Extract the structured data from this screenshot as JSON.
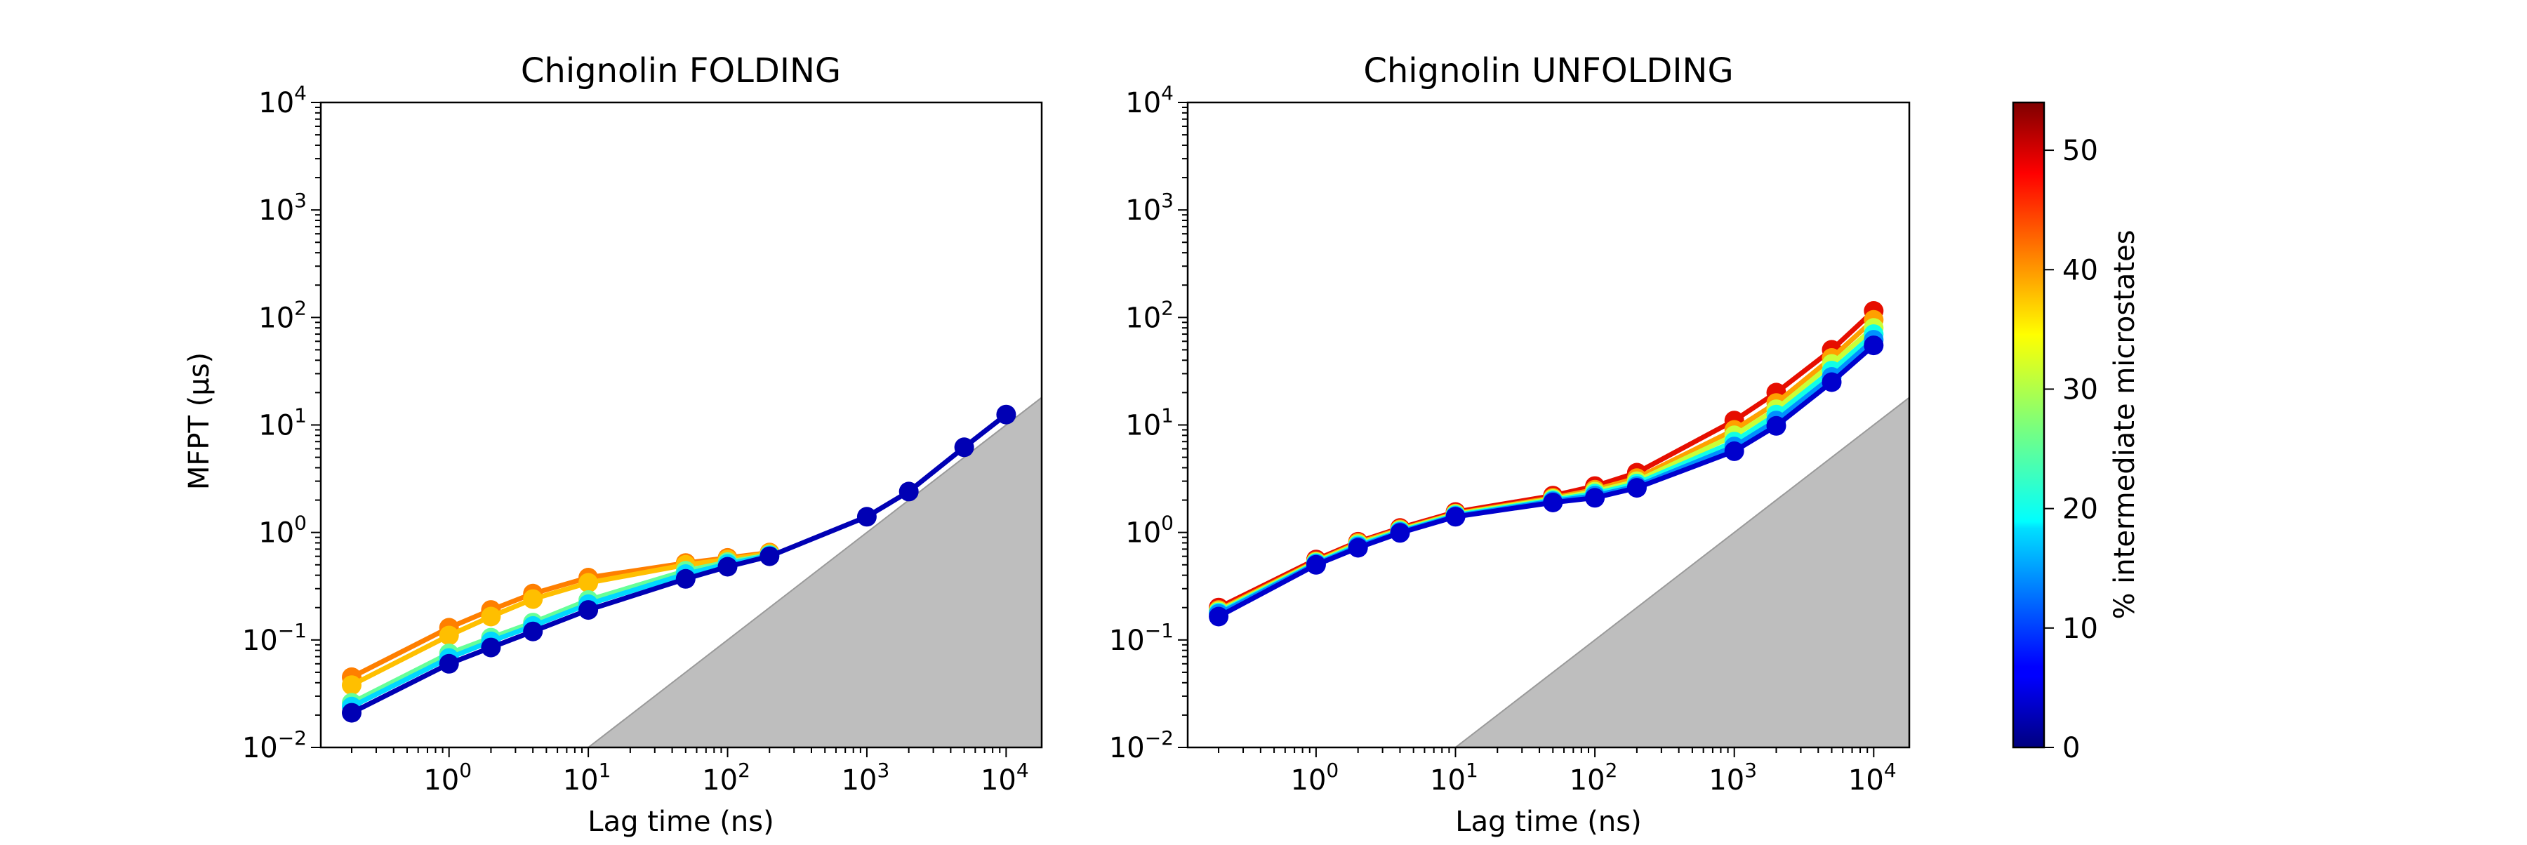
{
  "chart_data": [
    {
      "type": "line",
      "title": "Chignolin FOLDING",
      "xlabel": "Lag time (ns)",
      "ylabel": "MFPT (μs)",
      "xscale": "log",
      "yscale": "log",
      "xlim": [
        0.12,
        18000
      ],
      "ylim": [
        0.01,
        10000
      ],
      "xticks": [
        1,
        10,
        100,
        1000,
        10000
      ],
      "xtick_labels": [
        [
          "10",
          "0"
        ],
        [
          "10",
          "1"
        ],
        [
          "10",
          "2"
        ],
        [
          "10",
          "3"
        ],
        [
          "10",
          "4"
        ]
      ],
      "yticks": [
        0.01,
        0.1,
        1,
        10,
        100,
        1000,
        10000
      ],
      "ytick_labels": [
        [
          "10",
          "−2"
        ],
        [
          "10",
          "−1"
        ],
        [
          "10",
          "0"
        ],
        [
          "10",
          "1"
        ],
        [
          "10",
          "2"
        ],
        [
          "10",
          "3"
        ],
        [
          "10",
          "4"
        ]
      ],
      "shaded_region": {
        "description": "MFPT below lag time",
        "x_start": 10,
        "color": "#bebebe"
      },
      "series": [
        {
          "pct": 45,
          "color": "#ff7f00",
          "x": [
            0.2,
            1,
            2,
            4,
            10,
            50,
            100,
            200
          ],
          "y": [
            0.045,
            0.13,
            0.19,
            0.27,
            0.38,
            0.52,
            0.58,
            0.65
          ]
        },
        {
          "pct": 38,
          "color": "#ffbf00",
          "x": [
            0.2,
            1,
            2,
            4,
            10,
            50,
            100,
            200
          ],
          "y": [
            0.038,
            0.11,
            0.165,
            0.24,
            0.34,
            0.5,
            0.56,
            0.64
          ]
        },
        {
          "pct": 25,
          "color": "#66ff99",
          "x": [
            0.2,
            1,
            2,
            4,
            10,
            50,
            100,
            200
          ],
          "y": [
            0.026,
            0.075,
            0.105,
            0.145,
            0.235,
            0.44,
            0.53,
            0.62
          ]
        },
        {
          "pct": 18,
          "color": "#00d8ff",
          "x": [
            0.2,
            1,
            2,
            4,
            10,
            50,
            100,
            200
          ],
          "y": [
            0.024,
            0.068,
            0.097,
            0.135,
            0.215,
            0.41,
            0.51,
            0.61
          ]
        },
        {
          "pct": 2,
          "color": "#0000b4",
          "x": [
            0.2,
            1,
            2,
            4,
            10,
            50,
            100,
            200,
            1000,
            2000,
            5000,
            10000
          ],
          "y": [
            0.021,
            0.06,
            0.085,
            0.12,
            0.19,
            0.37,
            0.48,
            0.6,
            1.4,
            2.4,
            6.2,
            12.5
          ]
        }
      ]
    },
    {
      "type": "line",
      "title": "Chignolin UNFOLDING",
      "xlabel": "Lag time (ns)",
      "ylabel": "",
      "xscale": "log",
      "yscale": "log",
      "xlim": [
        0.12,
        18000
      ],
      "ylim": [
        0.01,
        10000
      ],
      "xticks": [
        1,
        10,
        100,
        1000,
        10000
      ],
      "xtick_labels": [
        [
          "10",
          "0"
        ],
        [
          "10",
          "1"
        ],
        [
          "10",
          "2"
        ],
        [
          "10",
          "3"
        ],
        [
          "10",
          "4"
        ]
      ],
      "yticks": [
        0.01,
        0.1,
        1,
        10,
        100,
        1000,
        10000
      ],
      "ytick_labels": [
        [
          "10",
          "−2"
        ],
        [
          "10",
          "−1"
        ],
        [
          "10",
          "0"
        ],
        [
          "10",
          "1"
        ],
        [
          "10",
          "2"
        ],
        [
          "10",
          "3"
        ],
        [
          "10",
          "4"
        ]
      ],
      "shaded_region": {
        "description": "MFPT below lag time",
        "x_start": 10,
        "color": "#bebebe"
      },
      "series": [
        {
          "pct": 50,
          "color": "#e60e00",
          "x": [
            0.2,
            1,
            2,
            4,
            10,
            50,
            100,
            200,
            1000,
            2000,
            5000,
            10000
          ],
          "y": [
            0.2,
            0.56,
            0.82,
            1.1,
            1.55,
            2.2,
            2.7,
            3.6,
            11,
            20,
            50,
            115
          ]
        },
        {
          "pct": 40,
          "color": "#ffa000",
          "x": [
            0.2,
            1,
            2,
            4,
            10,
            50,
            100,
            200,
            1000,
            2000,
            5000,
            10000
          ],
          "y": [
            0.19,
            0.54,
            0.8,
            1.07,
            1.5,
            2.1,
            2.5,
            3.2,
            9,
            16,
            42,
            95
          ]
        },
        {
          "pct": 30,
          "color": "#c8ff37",
          "x": [
            0.2,
            1,
            2,
            4,
            10,
            50,
            100,
            200,
            1000,
            2000,
            5000,
            10000
          ],
          "y": [
            0.185,
            0.53,
            0.78,
            1.05,
            1.48,
            2.05,
            2.4,
            3.0,
            8,
            14,
            37,
            80
          ]
        },
        {
          "pct": 20,
          "color": "#10ffe7",
          "x": [
            0.2,
            1,
            2,
            4,
            10,
            50,
            100,
            200,
            1000,
            2000,
            5000,
            10000
          ],
          "y": [
            0.18,
            0.52,
            0.76,
            1.03,
            1.45,
            2.0,
            2.3,
            2.85,
            7,
            12.5,
            32,
            70
          ]
        },
        {
          "pct": 12,
          "color": "#0090ff",
          "x": [
            0.2,
            1,
            2,
            4,
            10,
            50,
            100,
            200,
            1000,
            2000,
            5000,
            10000
          ],
          "y": [
            0.175,
            0.51,
            0.74,
            1.01,
            1.42,
            1.95,
            2.2,
            2.7,
            6.3,
            11,
            28,
            62
          ]
        },
        {
          "pct": 3,
          "color": "#0000cd",
          "x": [
            0.2,
            1,
            2,
            4,
            10,
            50,
            100,
            200,
            1000,
            2000,
            5000,
            10000
          ],
          "y": [
            0.165,
            0.5,
            0.72,
            0.99,
            1.4,
            1.9,
            2.1,
            2.6,
            5.7,
            9.8,
            25,
            55
          ]
        }
      ]
    }
  ],
  "colorbar": {
    "label": "% intermediate microstates",
    "colormap": "jet",
    "range": [
      0,
      54
    ],
    "ticks": [
      "0",
      "10",
      "20",
      "30",
      "40",
      "50"
    ],
    "tick_values": [
      0,
      10,
      20,
      30,
      40,
      50
    ]
  }
}
